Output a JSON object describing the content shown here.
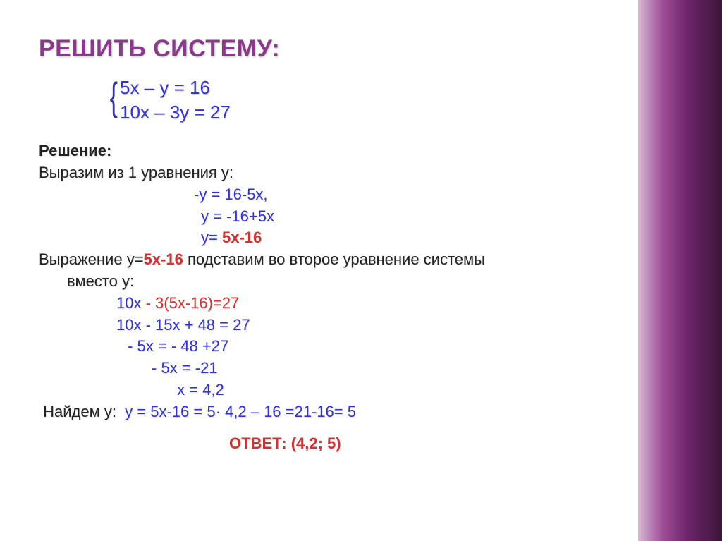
{
  "title": "РЕШИТЬ СИСТЕМУ:",
  "system": {
    "eq1": "5x – y = 16",
    "eq2": "10x – 3y = 27"
  },
  "solution_label": "Решение:",
  "step1_text": "Выразим из 1 уравнения у:",
  "step1_lines": {
    "a": "-y = 16-5x,",
    "b": "y = -16+5x",
    "c_pre": "y= ",
    "c_red": "5x-16"
  },
  "step2_pre": "Выражение  у=",
  "step2_red": "5x-16",
  "step2_post": " подставим во второе уравнение системы",
  "step2_wrap": "вместо у:",
  "work": {
    "l1_a": "10x ",
    "l1_b": "- 3(5x-16)=27",
    "l2": "10x - 15x + 48 = 27",
    "l3": " - 5x = - 48 +27",
    "l4": "- 5x = -21",
    "l5": " x = 4,2"
  },
  "findy_pre": " Найдем у:  ",
  "findy_blue": "y = 5x-16 = 5· 4,2 – 16 =21-16= 5",
  "answer_label": "ОТВЕТ: ",
  "answer_val": "(4,2; 5)",
  "colors": {
    "title": "#8b3a8b",
    "blue": "#3333cc",
    "red": "#cc3333",
    "text": "#222222",
    "gradient_start": "#d8bcd4",
    "gradient_end": "#3d1539"
  }
}
